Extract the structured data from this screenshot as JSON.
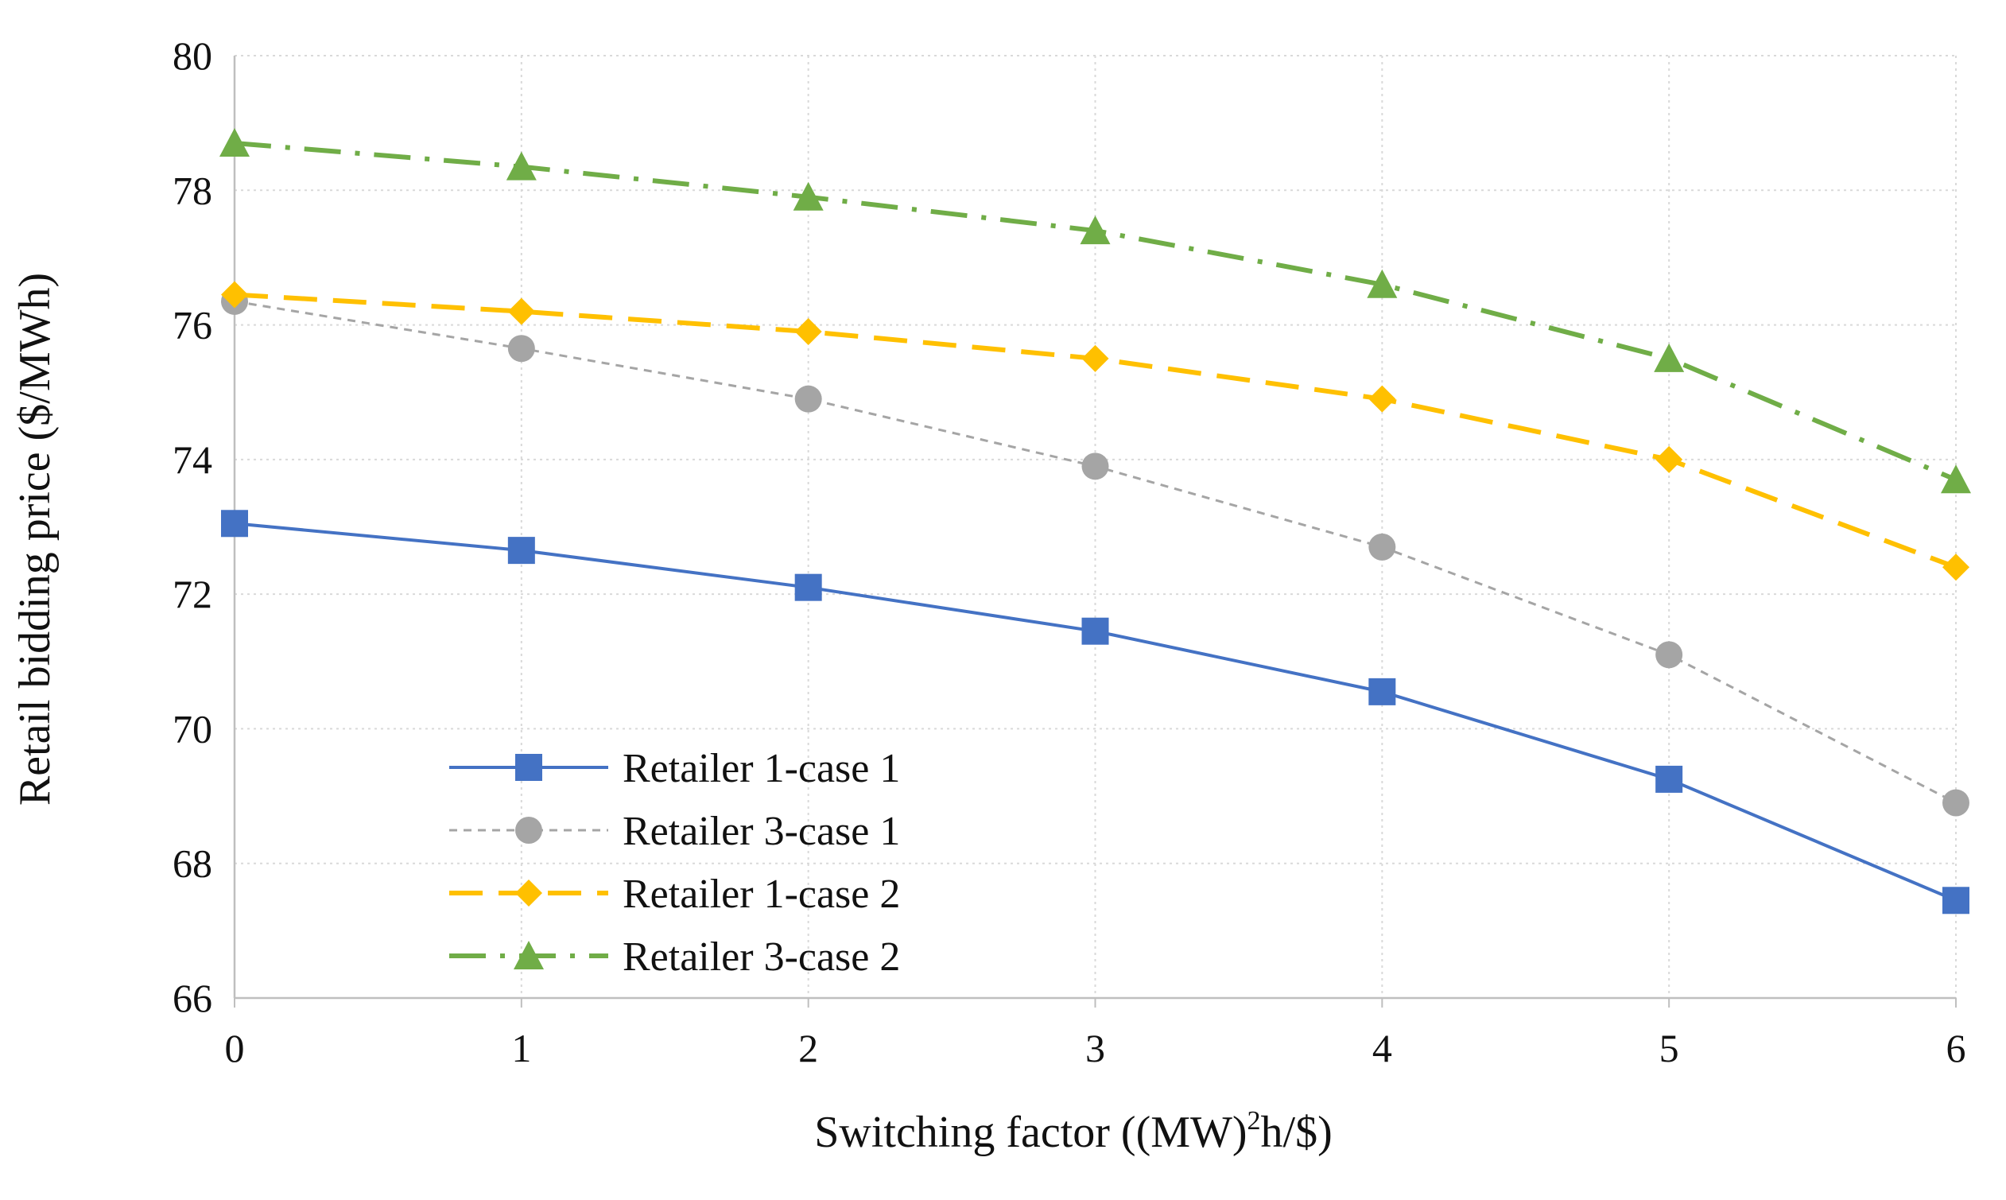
{
  "chart_data": {
    "type": "line",
    "title": "",
    "xlabel": "Switching factor ((MW)²h/$)",
    "xlabel_parts": {
      "prefix": "Switching factor ((MW)",
      "superscript": "2",
      "suffix": "h/$)"
    },
    "ylabel": "Retail bidding price ($/MWh)",
    "x": [
      0,
      1,
      2,
      3,
      4,
      5,
      6
    ],
    "xlim": [
      0,
      6
    ],
    "ylim": [
      66,
      80
    ],
    "xticks": [
      "0",
      "1",
      "2",
      "3",
      "4",
      "5",
      "6"
    ],
    "yticks": [
      "66",
      "68",
      "70",
      "72",
      "74",
      "76",
      "78",
      "80"
    ],
    "grid": true,
    "legend_position": "bottom-left",
    "series": [
      {
        "name": "Retailer 1-case 1",
        "color": "#4472C4",
        "marker": "square",
        "dash": "solid",
        "values": [
          73.05,
          72.65,
          72.1,
          71.45,
          70.55,
          69.25,
          67.45
        ]
      },
      {
        "name": "Retailer 3-case 1",
        "color": "#A5A5A5",
        "marker": "circle",
        "dash": "dashed",
        "values": [
          76.35,
          75.65,
          74.9,
          73.9,
          72.7,
          71.1,
          68.9
        ]
      },
      {
        "name": "Retailer 1-case 2",
        "color": "#FFC000",
        "marker": "diamond",
        "dash": "longdash",
        "values": [
          76.45,
          76.2,
          75.9,
          75.5,
          74.9,
          74.0,
          72.4
        ]
      },
      {
        "name": "Retailer 3-case 2",
        "color": "#70AD47",
        "marker": "triangle",
        "dash": "dashdot",
        "values": [
          78.7,
          78.35,
          77.9,
          77.4,
          76.6,
          75.5,
          73.7
        ]
      }
    ]
  }
}
